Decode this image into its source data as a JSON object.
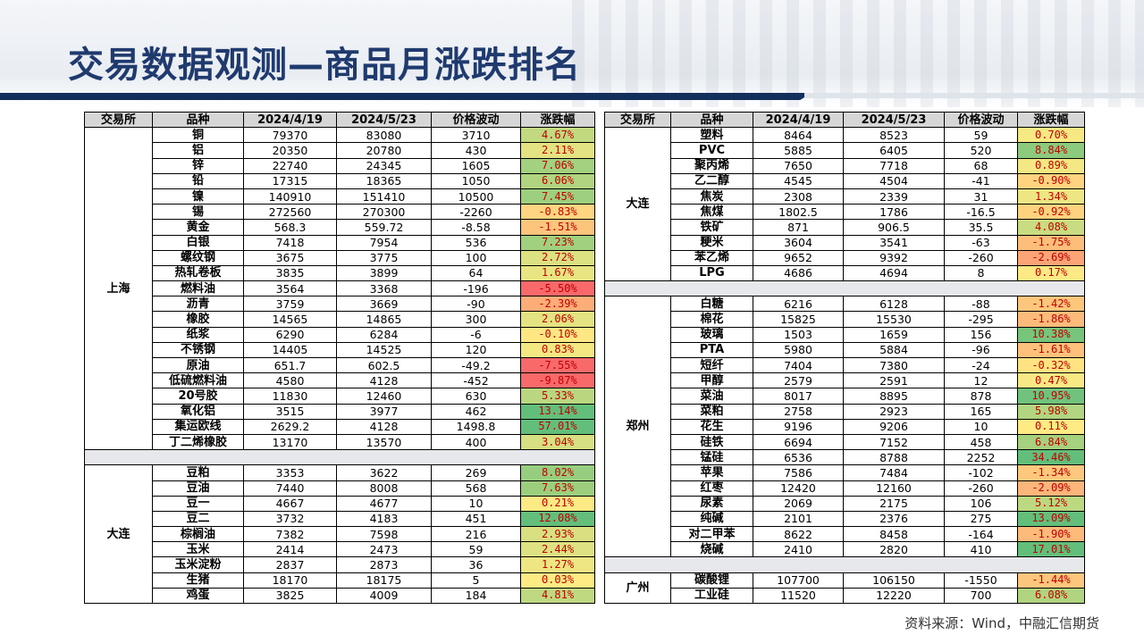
{
  "title": "交易数据观测—商品月涨跌排名",
  "source": "资料来源：Wind，中融汇信期货",
  "headers": [
    "交易所",
    "品种",
    "2024/4/19",
    "2024/5/23",
    "价格波动",
    "涨跌幅"
  ],
  "left_sections": [
    {
      "exchange": "上海",
      "rows": [
        {
          "name": "铜",
          "p1": "79370",
          "p2": "83080",
          "chg": "3710",
          "pct": "4.67%",
          "v": 4.67
        },
        {
          "name": "铝",
          "p1": "20350",
          "p2": "20780",
          "chg": "430",
          "pct": "2.11%",
          "v": 2.11
        },
        {
          "name": "锌",
          "p1": "22740",
          "p2": "24345",
          "chg": "1605",
          "pct": "7.06%",
          "v": 7.06
        },
        {
          "name": "铅",
          "p1": "17315",
          "p2": "18365",
          "chg": "1050",
          "pct": "6.06%",
          "v": 6.06
        },
        {
          "name": "镍",
          "p1": "140910",
          "p2": "151410",
          "chg": "10500",
          "pct": "7.45%",
          "v": 7.45
        },
        {
          "name": "锡",
          "p1": "272560",
          "p2": "270300",
          "chg": "-2260",
          "pct": "-0.83%",
          "v": -0.83
        },
        {
          "name": "黄金",
          "p1": "568.3",
          "p2": "559.72",
          "chg": "-8.58",
          "pct": "-1.51%",
          "v": -1.51
        },
        {
          "name": "白银",
          "p1": "7418",
          "p2": "7954",
          "chg": "536",
          "pct": "7.23%",
          "v": 7.23
        },
        {
          "name": "螺纹钢",
          "p1": "3675",
          "p2": "3775",
          "chg": "100",
          "pct": "2.72%",
          "v": 2.72
        },
        {
          "name": "热轧卷板",
          "p1": "3835",
          "p2": "3899",
          "chg": "64",
          "pct": "1.67%",
          "v": 1.67
        },
        {
          "name": "燃料油",
          "p1": "3564",
          "p2": "3368",
          "chg": "-196",
          "pct": "-5.50%",
          "v": -5.5
        },
        {
          "name": "沥青",
          "p1": "3759",
          "p2": "3669",
          "chg": "-90",
          "pct": "-2.39%",
          "v": -2.39
        },
        {
          "name": "橡胶",
          "p1": "14565",
          "p2": "14865",
          "chg": "300",
          "pct": "2.06%",
          "v": 2.06
        },
        {
          "name": "纸浆",
          "p1": "6290",
          "p2": "6284",
          "chg": "-6",
          "pct": "-0.10%",
          "v": -0.1
        },
        {
          "name": "不锈钢",
          "p1": "14405",
          "p2": "14525",
          "chg": "120",
          "pct": "0.83%",
          "v": 0.83
        },
        {
          "name": "原油",
          "p1": "651.7",
          "p2": "602.5",
          "chg": "-49.2",
          "pct": "-7.55%",
          "v": -7.55
        },
        {
          "name": "低硫燃料油",
          "p1": "4580",
          "p2": "4128",
          "chg": "-452",
          "pct": "-9.87%",
          "v": -9.87
        },
        {
          "name": "20号胶",
          "p1": "11830",
          "p2": "12460",
          "chg": "630",
          "pct": "5.33%",
          "v": 5.33
        },
        {
          "name": "氧化铝",
          "p1": "3515",
          "p2": "3977",
          "chg": "462",
          "pct": "13.14%",
          "v": 13.14
        },
        {
          "name": "集运欧线",
          "p1": "2629.2",
          "p2": "4128",
          "chg": "1498.8",
          "pct": "57.01%",
          "v": 57.01
        },
        {
          "name": "丁二烯橡胶",
          "p1": "13170",
          "p2": "13570",
          "chg": "400",
          "pct": "3.04%",
          "v": 3.04
        }
      ]
    },
    {
      "exchange": "大连",
      "rows": [
        {
          "name": "豆粕",
          "p1": "3353",
          "p2": "3622",
          "chg": "269",
          "pct": "8.02%",
          "v": 8.02
        },
        {
          "name": "豆油",
          "p1": "7440",
          "p2": "8008",
          "chg": "568",
          "pct": "7.63%",
          "v": 7.63
        },
        {
          "name": "豆一",
          "p1": "4667",
          "p2": "4677",
          "chg": "10",
          "pct": "0.21%",
          "v": 0.21
        },
        {
          "name": "豆二",
          "p1": "3732",
          "p2": "4183",
          "chg": "451",
          "pct": "12.08%",
          "v": 12.08
        },
        {
          "name": "棕榈油",
          "p1": "7382",
          "p2": "7598",
          "chg": "216",
          "pct": "2.93%",
          "v": 2.93
        },
        {
          "name": "玉米",
          "p1": "2414",
          "p2": "2473",
          "chg": "59",
          "pct": "2.44%",
          "v": 2.44
        },
        {
          "name": "玉米淀粉",
          "p1": "2837",
          "p2": "2873",
          "chg": "36",
          "pct": "1.27%",
          "v": 1.27
        },
        {
          "name": "生猪",
          "p1": "18170",
          "p2": "18175",
          "chg": "5",
          "pct": "0.03%",
          "v": 0.03
        },
        {
          "name": "鸡蛋",
          "p1": "3825",
          "p2": "4009",
          "chg": "184",
          "pct": "4.81%",
          "v": 4.81
        }
      ]
    }
  ],
  "right_sections": [
    {
      "exchange": "大连",
      "rows": [
        {
          "name": "塑料",
          "p1": "8464",
          "p2": "8523",
          "chg": "59",
          "pct": "0.70%",
          "v": 0.7
        },
        {
          "name": "PVC",
          "p1": "5885",
          "p2": "6405",
          "chg": "520",
          "pct": "8.84%",
          "v": 8.84
        },
        {
          "name": "聚丙烯",
          "p1": "7650",
          "p2": "7718",
          "chg": "68",
          "pct": "0.89%",
          "v": 0.89
        },
        {
          "name": "乙二醇",
          "p1": "4545",
          "p2": "4504",
          "chg": "-41",
          "pct": "-0.90%",
          "v": -0.9
        },
        {
          "name": "焦炭",
          "p1": "2308",
          "p2": "2339",
          "chg": "31",
          "pct": "1.34%",
          "v": 1.34
        },
        {
          "name": "焦煤",
          "p1": "1802.5",
          "p2": "1786",
          "chg": "-16.5",
          "pct": "-0.92%",
          "v": -0.92
        },
        {
          "name": "铁矿",
          "p1": "871",
          "p2": "906.5",
          "chg": "35.5",
          "pct": "4.08%",
          "v": 4.08
        },
        {
          "name": "粳米",
          "p1": "3604",
          "p2": "3541",
          "chg": "-63",
          "pct": "-1.75%",
          "v": -1.75
        },
        {
          "name": "苯乙烯",
          "p1": "9652",
          "p2": "9392",
          "chg": "-260",
          "pct": "-2.69%",
          "v": -2.69
        },
        {
          "name": "LPG",
          "p1": "4686",
          "p2": "4694",
          "chg": "8",
          "pct": "0.17%",
          "v": 0.17
        }
      ]
    },
    {
      "exchange": "郑州",
      "rows": [
        {
          "name": "白糖",
          "p1": "6216",
          "p2": "6128",
          "chg": "-88",
          "pct": "-1.42%",
          "v": -1.42
        },
        {
          "name": "棉花",
          "p1": "15825",
          "p2": "15530",
          "chg": "-295",
          "pct": "-1.86%",
          "v": -1.86
        },
        {
          "name": "玻璃",
          "p1": "1503",
          "p2": "1659",
          "chg": "156",
          "pct": "10.38%",
          "v": 10.38
        },
        {
          "name": "PTA",
          "p1": "5980",
          "p2": "5884",
          "chg": "-96",
          "pct": "-1.61%",
          "v": -1.61
        },
        {
          "name": "短纤",
          "p1": "7404",
          "p2": "7380",
          "chg": "-24",
          "pct": "-0.32%",
          "v": -0.32
        },
        {
          "name": "甲醇",
          "p1": "2579",
          "p2": "2591",
          "chg": "12",
          "pct": "0.47%",
          "v": 0.47
        },
        {
          "name": "菜油",
          "p1": "8017",
          "p2": "8895",
          "chg": "878",
          "pct": "10.95%",
          "v": 10.95
        },
        {
          "name": "菜粕",
          "p1": "2758",
          "p2": "2923",
          "chg": "165",
          "pct": "5.98%",
          "v": 5.98
        },
        {
          "name": "花生",
          "p1": "9196",
          "p2": "9206",
          "chg": "10",
          "pct": "0.11%",
          "v": 0.11
        },
        {
          "name": "硅铁",
          "p1": "6694",
          "p2": "7152",
          "chg": "458",
          "pct": "6.84%",
          "v": 6.84
        },
        {
          "name": "锰硅",
          "p1": "6536",
          "p2": "8788",
          "chg": "2252",
          "pct": "34.46%",
          "v": 34.46
        },
        {
          "name": "苹果",
          "p1": "7586",
          "p2": "7484",
          "chg": "-102",
          "pct": "-1.34%",
          "v": -1.34
        },
        {
          "name": "红枣",
          "p1": "12420",
          "p2": "12160",
          "chg": "-260",
          "pct": "-2.09%",
          "v": -2.09
        },
        {
          "name": "尿素",
          "p1": "2069",
          "p2": "2175",
          "chg": "106",
          "pct": "5.12%",
          "v": 5.12
        },
        {
          "name": "纯碱",
          "p1": "2101",
          "p2": "2376",
          "chg": "275",
          "pct": "13.09%",
          "v": 13.09
        },
        {
          "name": "对二甲苯",
          "p1": "8622",
          "p2": "8458",
          "chg": "-164",
          "pct": "-1.90%",
          "v": -1.9
        },
        {
          "name": "烧碱",
          "p1": "2410",
          "p2": "2820",
          "chg": "410",
          "pct": "17.01%",
          "v": 17.01
        }
      ]
    },
    {
      "exchange": "广州",
      "rows": [
        {
          "name": "碳酸锂",
          "p1": "107700",
          "p2": "106150",
          "chg": "-1550",
          "pct": "-1.44%",
          "v": -1.44
        },
        {
          "name": "工业硅",
          "p1": "11520",
          "p2": "12220",
          "chg": "700",
          "pct": "6.08%",
          "v": 6.08
        }
      ]
    }
  ],
  "colors": {
    "title": "#1f3a6e",
    "header_bg": "#d6d6d6",
    "green": "#63be7b",
    "yellow": "#ffeb84",
    "red": "#f8696b"
  }
}
